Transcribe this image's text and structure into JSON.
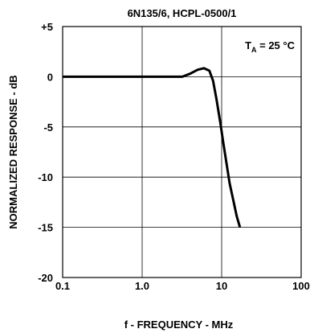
{
  "chart_data": {
    "type": "line",
    "title": "6N135/6, HCPL-0500/1",
    "xlabel": "f - FREQUENCY - MHz",
    "ylabel": "NORMALIZED RESPONSE - dB",
    "xscale": "log",
    "xlim": [
      0.1,
      100
    ],
    "ylim": [
      -20,
      5
    ],
    "grid": true,
    "x_ticks": [
      0.1,
      1.0,
      10,
      100
    ],
    "x_tick_labels": [
      "0.1",
      "1.0",
      "10",
      "100"
    ],
    "y_ticks": [
      5,
      0,
      -5,
      -10,
      -15,
      -20
    ],
    "y_tick_labels": [
      "+5",
      "0",
      "-5",
      "-10",
      "-15",
      "-20"
    ],
    "annotation": {
      "main": "T",
      "subscript": "A",
      "rest": " = 25 °C",
      "position": "top-right"
    },
    "series": [
      {
        "color": "#000000",
        "x": [
          0.1,
          1.0,
          3.2,
          4.0,
          5.0,
          6.0,
          7.0,
          7.8,
          8.6,
          9.6,
          10.5,
          11.5,
          12.6,
          14.0,
          15.5,
          17.0
        ],
        "y": [
          0,
          0,
          0,
          0.3,
          0.7,
          0.85,
          0.6,
          -0.4,
          -2.2,
          -4.5,
          -6.6,
          -8.6,
          -10.6,
          -12.3,
          -13.9,
          -15.0
        ]
      }
    ]
  }
}
